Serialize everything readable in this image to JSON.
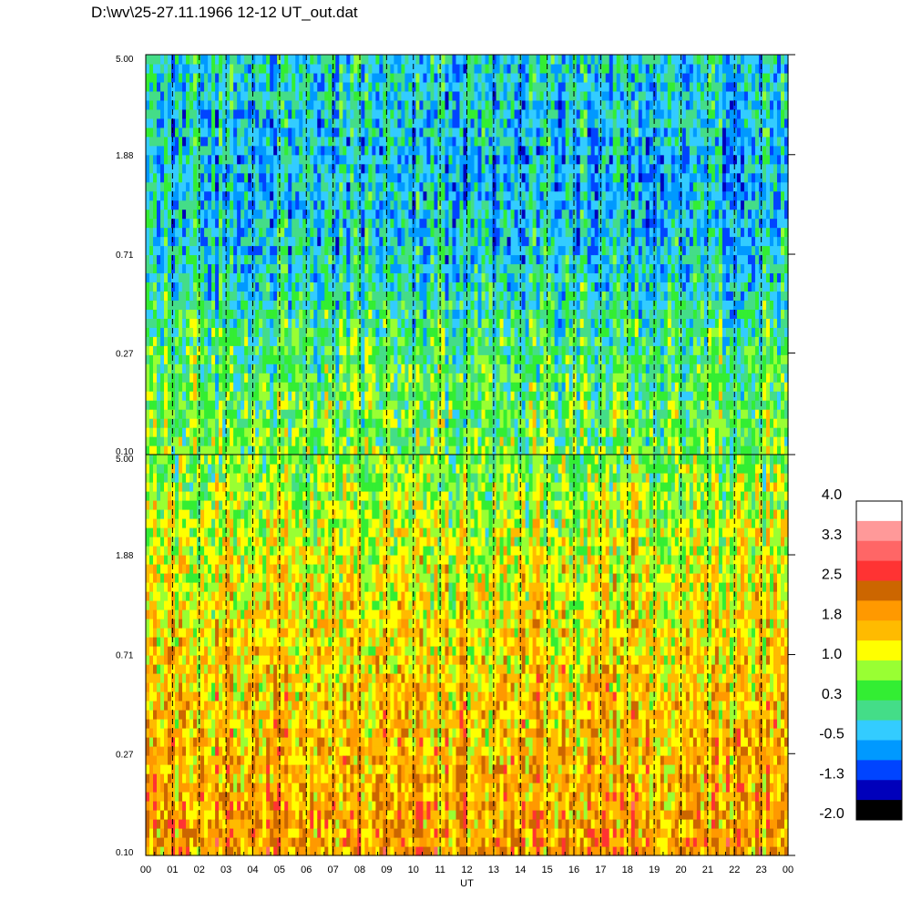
{
  "title": "D:\\wv\\25-27.11.1966  12-12 UT_out.dat",
  "chart_data": {
    "type": "heatmap",
    "panels": [
      {
        "name": "",
        "yticks": [
          "0.10",
          "0.27",
          "0.71",
          "1.88",
          "5.00"
        ],
        "ylim": [
          0.1,
          5.0
        ],
        "yscale": "log",
        "typical_level_by_frequency": [
          {
            "f": 0.1,
            "level": 0.6
          },
          {
            "f": 0.27,
            "level": 0.3
          },
          {
            "f": 0.71,
            "level": -0.3
          },
          {
            "f": 1.88,
            "level": -0.4
          },
          {
            "f": 5.0,
            "level": -0.2
          }
        ]
      },
      {
        "name": "",
        "yticks": [
          "0.10",
          "0.27",
          "0.71",
          "1.88",
          "5.00"
        ],
        "ylim": [
          0.1,
          5.0
        ],
        "yscale": "log",
        "typical_level_by_frequency": [
          {
            "f": 0.1,
            "level": 1.9
          },
          {
            "f": 0.27,
            "level": 1.7
          },
          {
            "f": 0.71,
            "level": 1.4
          },
          {
            "f": 1.88,
            "level": 1.1
          },
          {
            "f": 5.0,
            "level": 0.6
          }
        ]
      }
    ],
    "xticks": [
      "00",
      "01",
      "02",
      "03",
      "04",
      "05",
      "06",
      "07",
      "08",
      "09",
      "10",
      "11",
      "12",
      "13",
      "14",
      "15",
      "16",
      "17",
      "18",
      "19",
      "20",
      "21",
      "22",
      "23",
      "00"
    ],
    "xlabel": "UT",
    "xlim": [
      0,
      24
    ],
    "grid": "dashed vertical lines at each hour",
    "colorbar": {
      "labels": [
        "4.0",
        "3.3",
        "2.5",
        "1.8",
        "1.0",
        "0.3",
        "-0.5",
        "-1.3",
        "-2.0"
      ],
      "range": [
        -2.0,
        4.0
      ],
      "colors_top_to_bottom": [
        "#ffffff",
        "#ff9999",
        "#ff6666",
        "#ff3333",
        "#cc6600",
        "#ff9900",
        "#ffbb00",
        "#ffff00",
        "#99ff33",
        "#33ee33",
        "#44dd88",
        "#33ccff",
        "#0099ff",
        "#0044ff",
        "#0000bb",
        "#000000"
      ]
    }
  }
}
